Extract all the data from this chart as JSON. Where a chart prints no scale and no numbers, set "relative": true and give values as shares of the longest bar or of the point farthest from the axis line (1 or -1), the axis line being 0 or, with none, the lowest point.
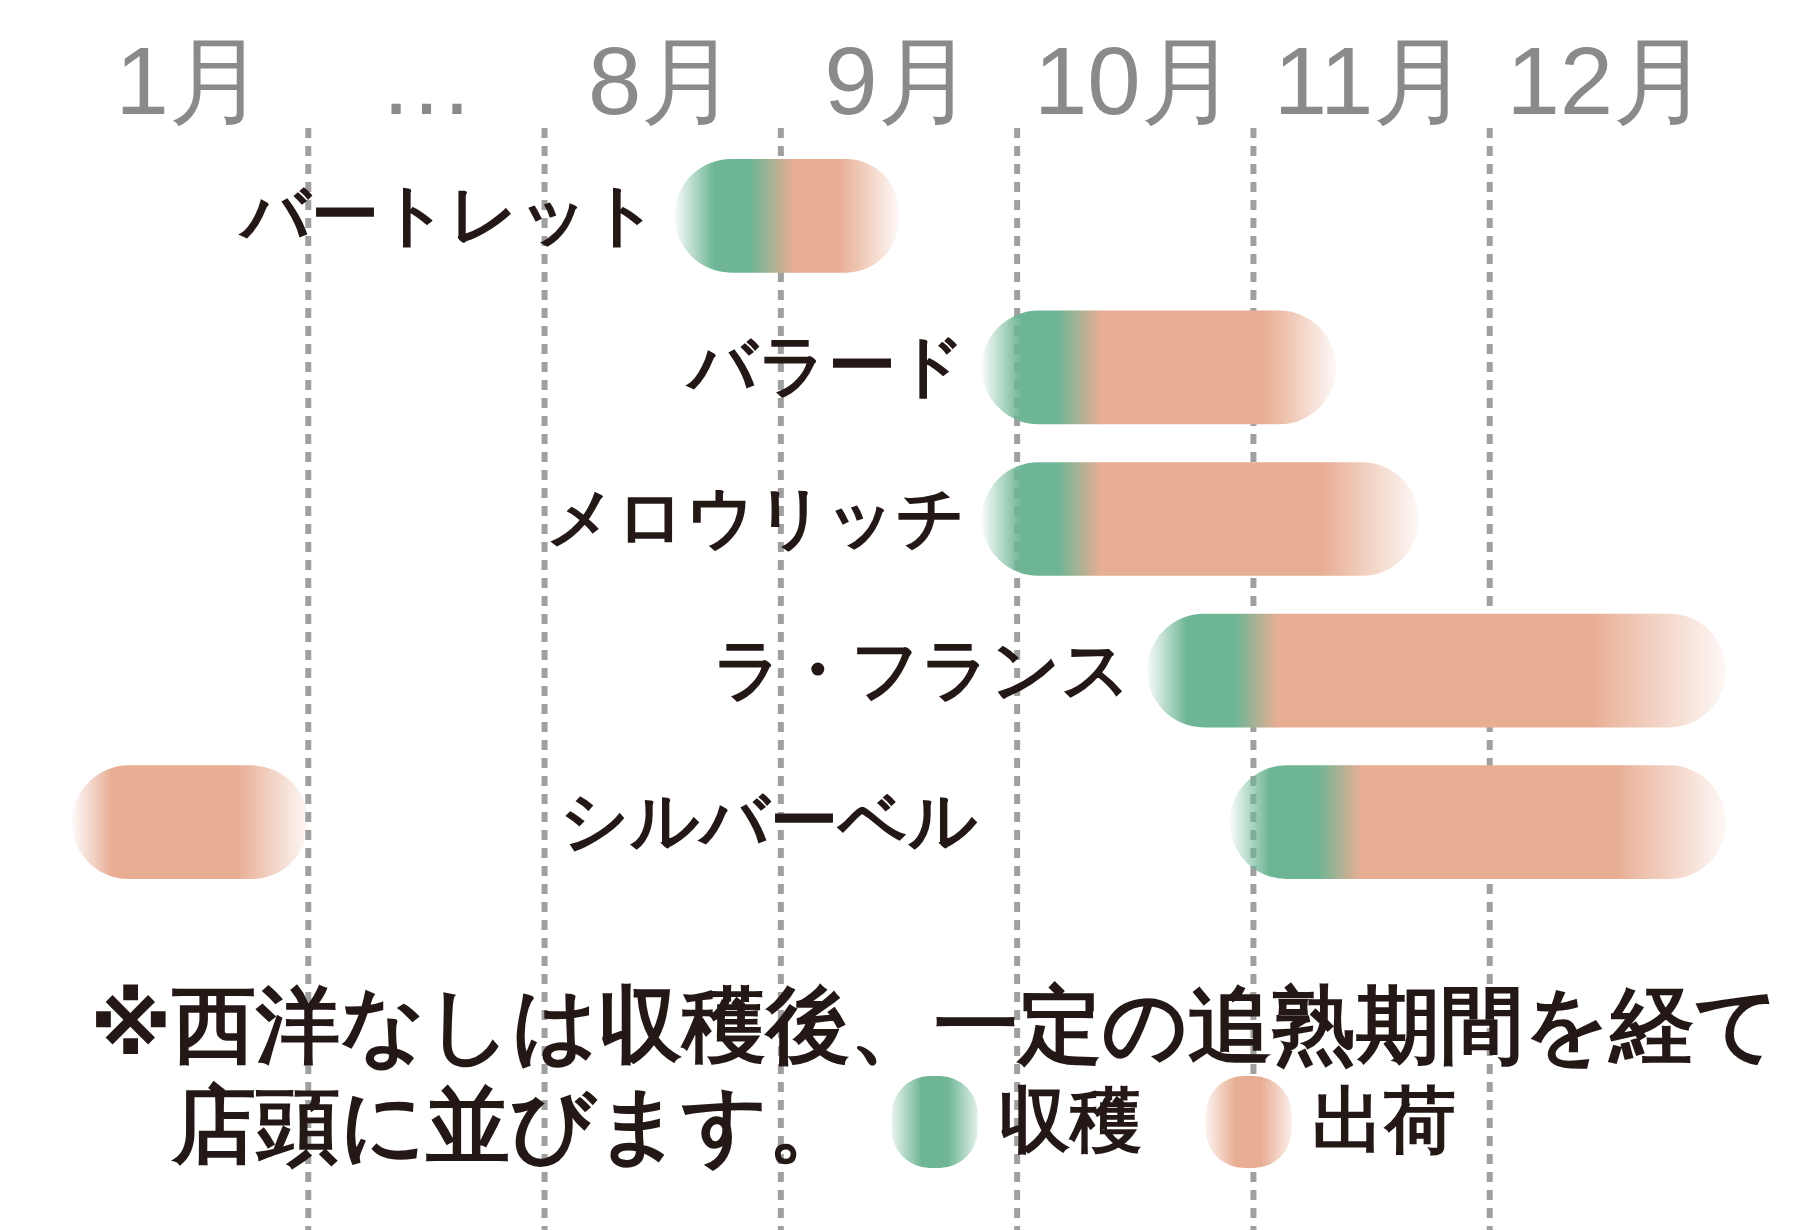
{
  "chart_data": [
    {
      "type": "bar",
      "orientation": "horizontal",
      "relative": true,
      "tick_labels": false,
      "categories": [
        "バートレット",
        "バラード",
        "メロウリッチ",
        "ラ・フランス",
        "シルバーベル"
      ],
      "series": [
        {
          "color": "#e8ae94",
          "values": [
            null,
            null,
            null,
            null,
            1
          ]
        }
      ],
      "annotations": [
        "1月"
      ]
    },
    {
      "type": "bar",
      "orientation": "horizontal",
      "categories": [
        "バートレット",
        "バラード",
        "メロウリッチ",
        "ラ・フランス",
        "シルバーベル"
      ],
      "xlim": [
        6.5,
        12.5
      ],
      "xticks": [
        {
          "value": 7,
          "label": "…"
        },
        {
          "value": 8,
          "label": "8月"
        },
        {
          "value": 9,
          "label": "9月"
        },
        {
          "value": 10,
          "label": "10月"
        },
        {
          "value": 11,
          "label": "11月"
        },
        {
          "value": 12,
          "label": "12月"
        }
      ],
      "series": [
        {
          "name": "収穫",
          "color": "#6db594",
          "base": [
            8.05,
            9.35,
            9.35,
            10.05,
            10.4
          ],
          "values": [
            0.5,
            0.5,
            0.5,
            0.55,
            0.55
          ]
        },
        {
          "name": "出荷",
          "color": "#e8ae94",
          "base": [
            8.55,
            9.85,
            9.85,
            10.6,
            10.95
          ],
          "values": [
            0.45,
            1.0,
            1.35,
            1.9,
            1.55
          ]
        }
      ],
      "ref_lines": [
        {
          "axis": "x",
          "value": 6.5,
          "color": "#a0a0a0",
          "line_style": "dashed"
        },
        {
          "axis": "x",
          "value": 7.5,
          "color": "#a0a0a0",
          "line_style": "dashed"
        },
        {
          "axis": "x",
          "value": 8.5,
          "color": "#a0a0a0",
          "line_style": "dashed"
        },
        {
          "axis": "x",
          "value": 9.5,
          "color": "#a0a0a0",
          "line_style": "dashed"
        },
        {
          "axis": "x",
          "value": 10.5,
          "color": "#a0a0a0",
          "line_style": "dashed"
        },
        {
          "axis": "x",
          "value": 11.5,
          "color": "#a0a0a0",
          "line_style": "dashed"
        }
      ],
      "legend": "bottom",
      "annotations": [
        "※西洋なしは収穫後、一定の追熟期間を経て",
        "店頭に並びます。"
      ]
    }
  ]
}
